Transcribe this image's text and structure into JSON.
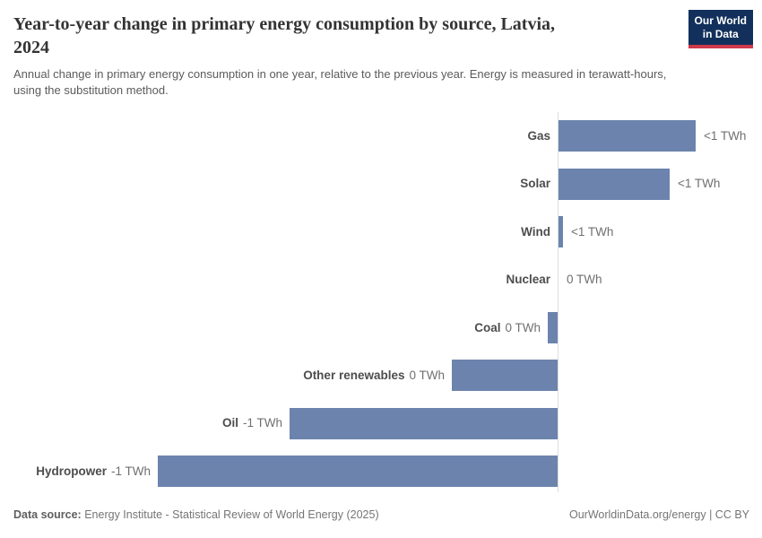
{
  "header": {
    "title": "Year-to-year change in primary energy consumption by source, Latvia, 2024",
    "subtitle": "Annual change in primary energy consumption in one year, relative to the previous year. Energy is measured in terawatt-hours, using the substitution method.",
    "logo": {
      "line1": "Our World",
      "line2": "in Data"
    }
  },
  "chart_data": {
    "type": "bar",
    "orientation": "horizontal",
    "title": "Year-to-year change in primary energy consumption by source, Latvia, 2024",
    "unit": "TWh",
    "xlim": [
      -1.4,
      0.5
    ],
    "grid": false,
    "legend": false,
    "zero_axis": true,
    "rows": [
      {
        "label": "Gas",
        "value_twh": 0.48,
        "display": "<1 TWh"
      },
      {
        "label": "Solar",
        "value_twh": 0.39,
        "display": "<1 TWh"
      },
      {
        "label": "Wind",
        "value_twh": 0.016,
        "display": "<1 TWh"
      },
      {
        "label": "Nuclear",
        "value_twh": 0,
        "display": "0 TWh"
      },
      {
        "label": "Coal",
        "value_twh": -0.035,
        "display": "0 TWh"
      },
      {
        "label": "Other renewables",
        "value_twh": -0.37,
        "display": "0 TWh"
      },
      {
        "label": "Oil",
        "value_twh": -0.94,
        "display": "-1 TWh"
      },
      {
        "label": "Hydropower",
        "value_twh": -1.4,
        "display": "-1 TWh"
      }
    ],
    "colors": {
      "bar": "#6c84ad",
      "axis": "#dedede"
    }
  },
  "footer": {
    "source_label": "Data source:",
    "source_text": "Energy Institute - Statistical Review of World Energy (2025)",
    "attribution": "OurWorldinData.org/energy | CC BY"
  }
}
